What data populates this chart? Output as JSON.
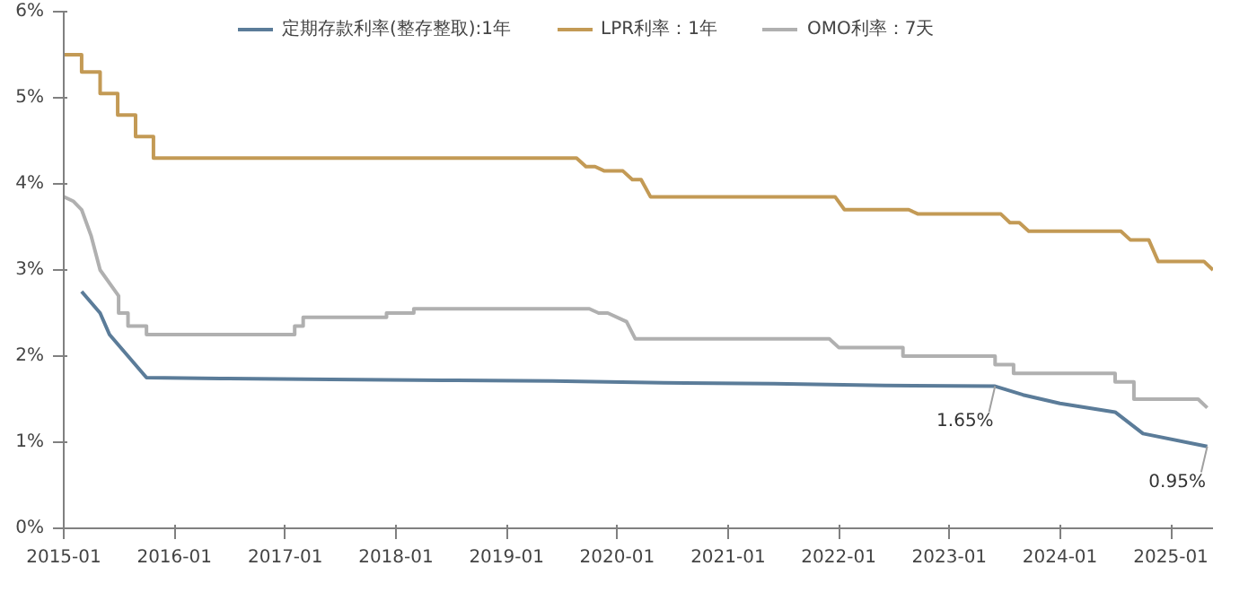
{
  "chart_data": {
    "type": "line",
    "x": [
      "2015-03",
      "2015-05",
      "2015-06",
      "2015-10",
      "2016-06",
      "2017-06",
      "2018-06",
      "2019-06",
      "2020-06",
      "2021-06",
      "2022-06",
      "2023-06",
      "2023-09",
      "2024-01",
      "2024-07",
      "2024-10",
      "2025-05"
    ],
    "series": [
      {
        "name": "定期存款利率(整存整取):1年",
        "color": "#5b7c99",
        "values": [
          2.75,
          2.5,
          2.25,
          1.75,
          1.74,
          1.73,
          1.72,
          1.71,
          1.69,
          1.68,
          1.66,
          1.65,
          1.55,
          1.45,
          1.35,
          1.1,
          0.95
        ]
      },
      {
        "name": "LPR利率：1年",
        "color": "#c39a55",
        "x": [
          "2015-01",
          "2015-03",
          "2015-03-01",
          "2015-05",
          "2015-05-01",
          "2015-06-28",
          "2015-06-28",
          "2015-08-26",
          "2015-08-26",
          "2015-10-24",
          "2015-10-24",
          "2019-08-20",
          "2019-09-20",
          "2019-10-20",
          "2019-11-20",
          "2020-01-20",
          "2020-02-20",
          "2020-03-20",
          "2020-04-20",
          "2021-12-20",
          "2022-01-20",
          "2022-08-20",
          "2022-09-20",
          "2023-06-20",
          "2023-07-20",
          "2023-08-20",
          "2023-09-20",
          "2024-07-20",
          "2024-08-20",
          "2024-10-20",
          "2024-11-20",
          "2025-04-20",
          "2025-05-20"
        ],
        "values": [
          5.5,
          5.5,
          5.3,
          5.3,
          5.05,
          5.05,
          4.8,
          4.8,
          4.55,
          4.55,
          4.3,
          4.3,
          4.2,
          4.2,
          4.15,
          4.15,
          4.05,
          4.05,
          3.85,
          3.85,
          3.7,
          3.7,
          3.65,
          3.65,
          3.55,
          3.55,
          3.45,
          3.45,
          3.35,
          3.35,
          3.1,
          3.1,
          3.0
        ]
      },
      {
        "name": "OMO利率：7天",
        "color": "#b0b0b0",
        "x": [
          "2015-01",
          "2015-02",
          "2015-03",
          "2015-04",
          "2015-05",
          "2015-07",
          "2015-07",
          "2015-08",
          "2015-08",
          "2015-10",
          "2015-10",
          "2017-01",
          "2017-02",
          "2017-02",
          "2017-03",
          "2017-03",
          "2017-12",
          "2017-12",
          "2018-03",
          "2018-03",
          "2019-10",
          "2019-11",
          "2019-12",
          "2020-02",
          "2020-03",
          "2021-12",
          "2022-01",
          "2022-08",
          "2022-08",
          "2023-06",
          "2023-06",
          "2023-08",
          "2023-08",
          "2024-07",
          "2024-07",
          "2024-09",
          "2024-09",
          "2025-04",
          "2025-05"
        ],
        "values": [
          3.85,
          3.8,
          3.7,
          3.4,
          3.0,
          2.7,
          2.5,
          2.5,
          2.35,
          2.35,
          2.25,
          2.25,
          2.25,
          2.35,
          2.35,
          2.45,
          2.45,
          2.5,
          2.5,
          2.55,
          2.55,
          2.5,
          2.5,
          2.4,
          2.2,
          2.2,
          2.1,
          2.1,
          2.0,
          2.0,
          1.9,
          1.9,
          1.8,
          1.8,
          1.7,
          1.7,
          1.5,
          1.5,
          1.4
        ]
      }
    ],
    "xlim": [
      "2015-01-01",
      "2025-05-20"
    ],
    "xticks": [
      {
        "value": "2015-01",
        "label": "2015-01"
      },
      {
        "value": "2016-01",
        "label": "2016-01"
      },
      {
        "value": "2017-01",
        "label": "2017-01"
      },
      {
        "value": "2018-01",
        "label": "2018-01"
      },
      {
        "value": "2019-01",
        "label": "2019-01"
      },
      {
        "value": "2020-01",
        "label": "2020-01"
      },
      {
        "value": "2021-01",
        "label": "2021-01"
      },
      {
        "value": "2022-01",
        "label": "2022-01"
      },
      {
        "value": "2023-01",
        "label": "2023-01"
      },
      {
        "value": "2024-01",
        "label": "2024-01"
      },
      {
        "value": "2025-01",
        "label": "2025-01"
      }
    ],
    "ylim": [
      0,
      6
    ],
    "yticks": [
      {
        "value": 0,
        "label": "0%"
      },
      {
        "value": 1,
        "label": "1%"
      },
      {
        "value": 2,
        "label": "2%"
      },
      {
        "value": 3,
        "label": "3%"
      },
      {
        "value": 4,
        "label": "4%"
      },
      {
        "value": 5,
        "label": "5%"
      },
      {
        "value": 6,
        "label": "6%"
      }
    ],
    "annotations": [
      {
        "text": "1.65%",
        "x": "2023-06",
        "y": 1.65
      },
      {
        "text": "0.95%",
        "x": "2025-05",
        "y": 0.95
      }
    ],
    "legend": "top",
    "grid": false,
    "marker": "none",
    "line_style": "solid"
  }
}
